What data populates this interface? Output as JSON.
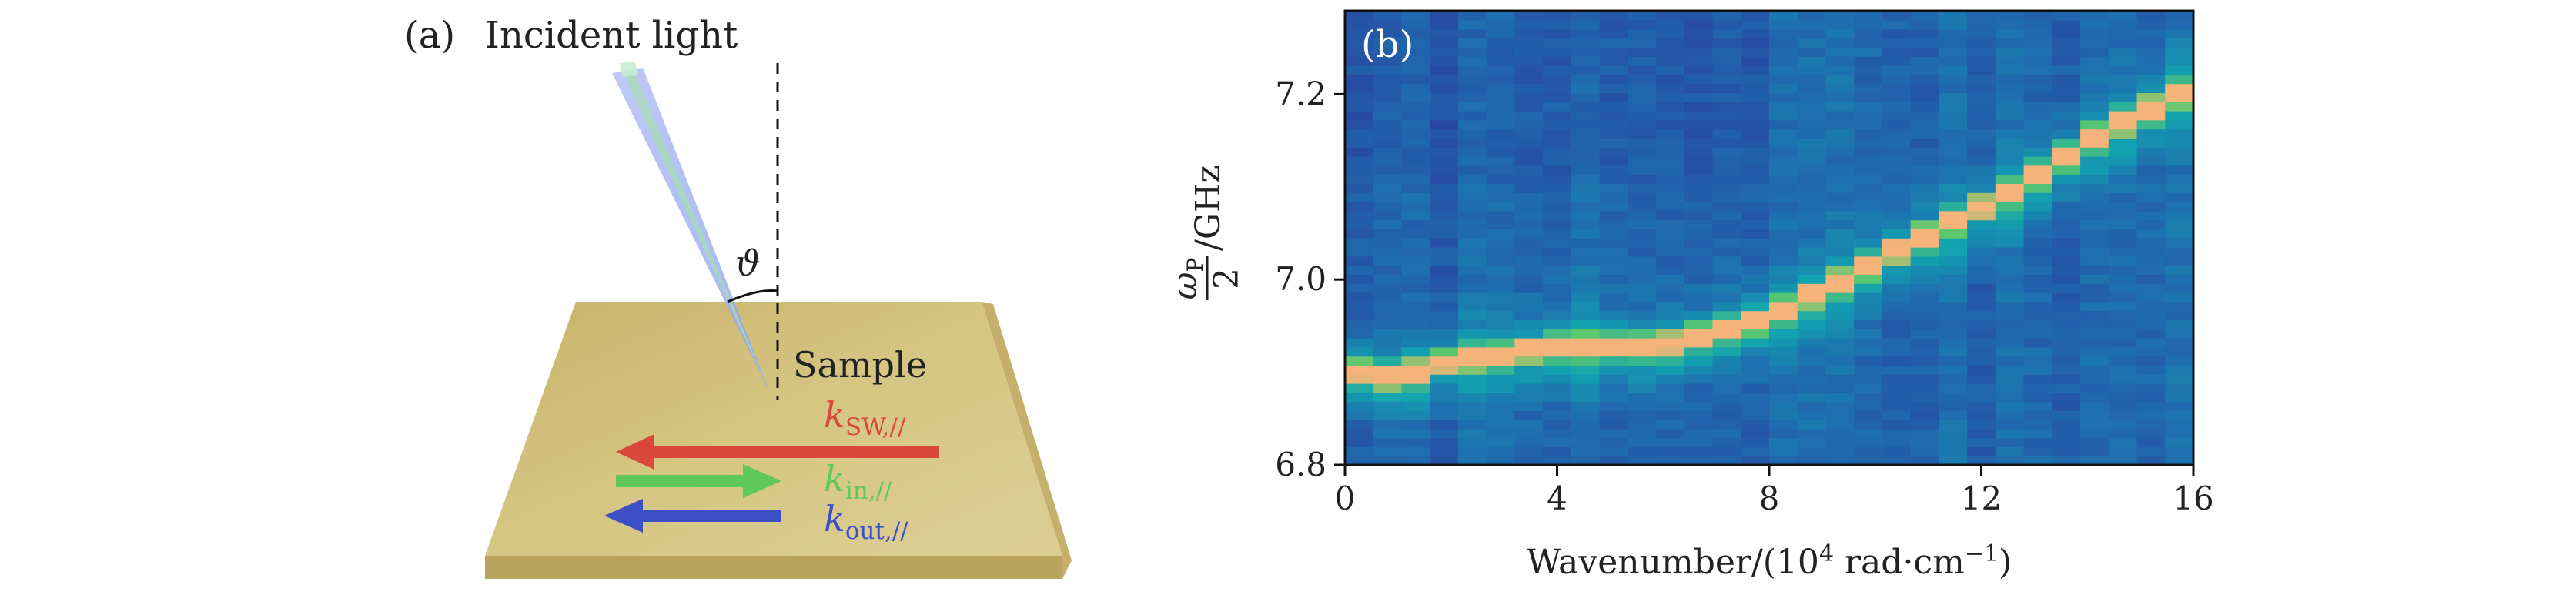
{
  "panel_a": {
    "label": "(a)",
    "title": "Incident light",
    "angle_symbol": "ϑ",
    "sample_label": "Sample",
    "arrows": [
      {
        "main": "k",
        "sub": "SW,//",
        "color": "#d9483b",
        "direction": "left"
      },
      {
        "main": "k",
        "sub": "in,//",
        "color": "#5fc85a",
        "direction": "right"
      },
      {
        "main": "k",
        "sub": "out,//",
        "color": "#3c4fc4",
        "direction": "left"
      }
    ]
  },
  "chart_data": {
    "type": "heatmap",
    "panel_label": "(b)",
    "xlabel_main": "Wavenumber/(10",
    "xlabel_exp": "4",
    "xlabel_tail": " rad·cm",
    "xlabel_exp2": "−1",
    "xlabel_close": ")",
    "ylabel_omega": "ω",
    "ylabel_sub": "P",
    "ylabel_den": "2",
    "ylabel_unit": "/GHz",
    "xlim": [
      0,
      16
    ],
    "ylim": [
      6.8,
      7.29
    ],
    "x_ticks": [
      0,
      4,
      8,
      12,
      16
    ],
    "x_tick_labels": [
      "0",
      "4",
      "8",
      "12",
      "16"
    ],
    "y_ticks": [
      6.8,
      7.0,
      7.2
    ],
    "y_tick_labels": [
      "6.8",
      "7.0",
      "7.2"
    ],
    "n_columns": 30,
    "n_rows": 50,
    "ridge": {
      "description": "peak intensity frequency vs wavenumber",
      "x": [
        0,
        1,
        2,
        3,
        4,
        5,
        6,
        7,
        8,
        9,
        10,
        11,
        12,
        13,
        14,
        15,
        16
      ],
      "y": [
        6.905,
        6.895,
        6.915,
        6.92,
        6.93,
        6.93,
        6.93,
        6.945,
        6.96,
        6.99,
        7.02,
        7.05,
        7.08,
        7.11,
        7.15,
        7.18,
        7.21
      ]
    },
    "colormap": {
      "low": "#2a3f9e",
      "mid_low": "#1e6fb0",
      "mid": "#12a3b0",
      "mid_high": "#5cc86e",
      "high": "#f6b37a"
    }
  }
}
